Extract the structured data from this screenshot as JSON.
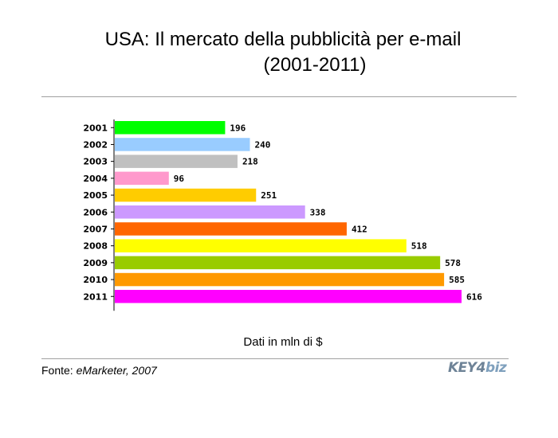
{
  "title_line1": "USA: Il mercato della pubblicità per e-mail",
  "title_line2": "(2001-2011)",
  "unit_label": "Dati in mln di $",
  "source": {
    "prefix": "Fonte: ",
    "name": "eMarketer, 2007"
  },
  "logo": {
    "part1": "KEY4",
    "part2": "biz"
  },
  "chart_data": {
    "type": "bar",
    "orientation": "horizontal",
    "categories": [
      "2001",
      "2002",
      "2003",
      "2004",
      "2005",
      "2006",
      "2007",
      "2008",
      "2009",
      "2010",
      "2011"
    ],
    "values": [
      196,
      240,
      218,
      96,
      251,
      338,
      412,
      518,
      578,
      585,
      616
    ],
    "colors": [
      "#00ff00",
      "#99ccff",
      "#c0c0c0",
      "#ff99cc",
      "#ffcc00",
      "#cc99ff",
      "#ff6600",
      "#ffff00",
      "#99cc00",
      "#ff9900",
      "#ff00ff"
    ],
    "data_labels": true,
    "xlim": [
      0,
      616
    ],
    "grid": false,
    "legend": "none"
  }
}
